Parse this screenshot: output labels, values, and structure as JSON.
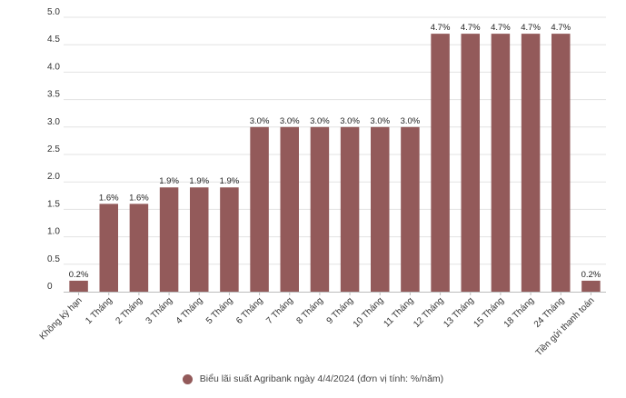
{
  "chart_data": {
    "type": "bar",
    "categories": [
      "Không kỳ hạn",
      "1 Tháng",
      "2 Tháng",
      "3 Tháng",
      "4 Tháng",
      "5 Tháng",
      "6 Tháng",
      "7 Tháng",
      "8 Tháng",
      "9 Tháng",
      "10 Tháng",
      "11 Tháng",
      "12 Tháng",
      "13 Tháng",
      "15 Tháng",
      "18 Tháng",
      "24 Tháng",
      "Tiền gửi thanh toán"
    ],
    "series": [
      {
        "name": "Biểu lãi suất Agribank ngày 4/4/2024 (đơn vị tính: %/năm)",
        "values": [
          0.2,
          1.6,
          1.6,
          1.9,
          1.9,
          1.9,
          3.0,
          3.0,
          3.0,
          3.0,
          3.0,
          3.0,
          4.7,
          4.7,
          4.7,
          4.7,
          4.7,
          0.2
        ],
        "labels": [
          "0.2%",
          "1.6%",
          "1.6%",
          "1.9%",
          "1.9%",
          "1.9%",
          "3.0%",
          "3.0%",
          "3.0%",
          "3.0%",
          "3.0%",
          "3.0%",
          "4.7%",
          "4.7%",
          "4.7%",
          "4.7%",
          "4.7%",
          "0.2%"
        ],
        "color": "#935a5a"
      }
    ],
    "yticks": [
      "0",
      "0.5",
      "1.0",
      "1.5",
      "2.0",
      "2.5",
      "3.0",
      "3.5",
      "4.0",
      "4.5",
      "5.0"
    ],
    "ylim": [
      0,
      5.0
    ],
    "grid": true,
    "legend_position": "bottom"
  }
}
